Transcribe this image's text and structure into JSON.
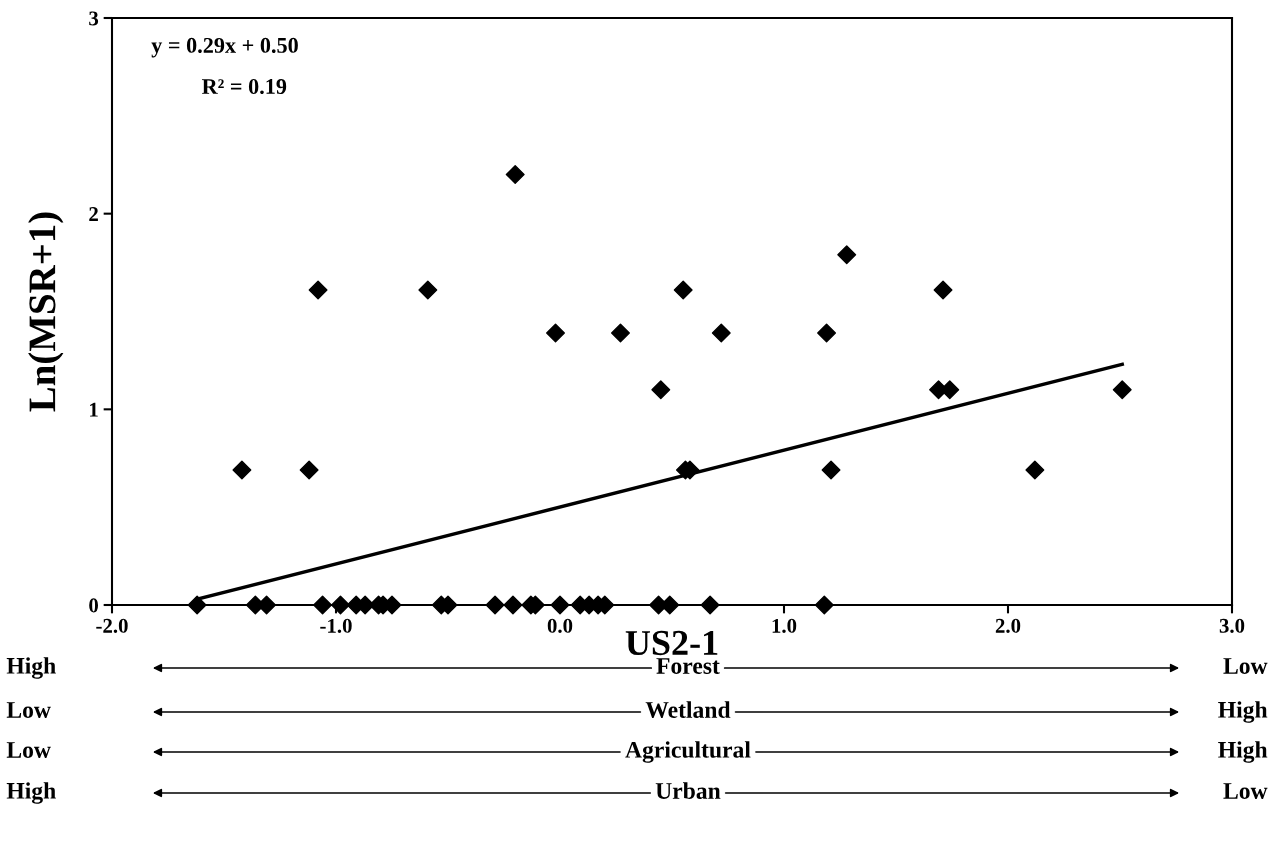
{
  "chart_data": {
    "type": "scatter",
    "xlabel": "US2-1",
    "ylabel": "Ln(MSR+1)",
    "xlim": [
      -2,
      3
    ],
    "ylim": [
      0,
      3
    ],
    "xticks": [
      {
        "value": -2,
        "label": "-2.0"
      },
      {
        "value": -1,
        "label": "-1.0"
      },
      {
        "value": 0,
        "label": "0.0"
      },
      {
        "value": 1,
        "label": "1.0"
      },
      {
        "value": 2,
        "label": "2.0"
      },
      {
        "value": 3,
        "label": "3.0"
      }
    ],
    "yticks": [
      0,
      1,
      2,
      3
    ],
    "grid": false,
    "legend": false,
    "marker": "diamond",
    "series": [
      {
        "color": "#000000",
        "x": [
          -1.62,
          -1.36,
          -1.31,
          -1.06,
          -0.98,
          -0.91,
          -0.87,
          -0.81,
          -0.79,
          -0.75,
          -0.53,
          -0.5,
          -0.29,
          -0.21,
          -0.13,
          -0.11,
          0.0,
          0.09,
          0.13,
          0.17,
          0.2,
          0.44,
          0.49,
          0.67,
          1.18,
          -1.42,
          -1.12,
          -1.08,
          -0.59,
          -0.2,
          -0.02,
          0.27,
          0.45,
          0.55,
          0.56,
          0.58,
          0.72,
          1.19,
          1.21,
          1.28,
          1.69,
          1.71,
          1.74,
          2.12,
          2.51
        ],
        "values": [
          0,
          0,
          0,
          0,
          0,
          0,
          0,
          0,
          0,
          0,
          0,
          0,
          0,
          0,
          0,
          0,
          0,
          0,
          0,
          0,
          0,
          0,
          0,
          0,
          0,
          0.69,
          0.69,
          1.61,
          1.61,
          2.2,
          1.39,
          1.39,
          1.1,
          1.61,
          0.69,
          0.69,
          1.39,
          1.39,
          0.69,
          1.79,
          1.1,
          1.61,
          1.1,
          0.69,
          1.1
        ]
      },
      {
        "type": "line",
        "color": "#000000",
        "marker": "none",
        "line_style": "solid",
        "x": [
          -1.62,
          2.51
        ],
        "values": [
          0.03,
          1.23
        ]
      }
    ],
    "annotations": [
      "y = 0.29x + 0.50",
      "R² = 0.19",
      "High",
      "Forest",
      "Low",
      "Low",
      "Wetland",
      "High",
      "Low",
      "Agricultural",
      "High",
      "High",
      "Urban",
      "Low"
    ]
  }
}
